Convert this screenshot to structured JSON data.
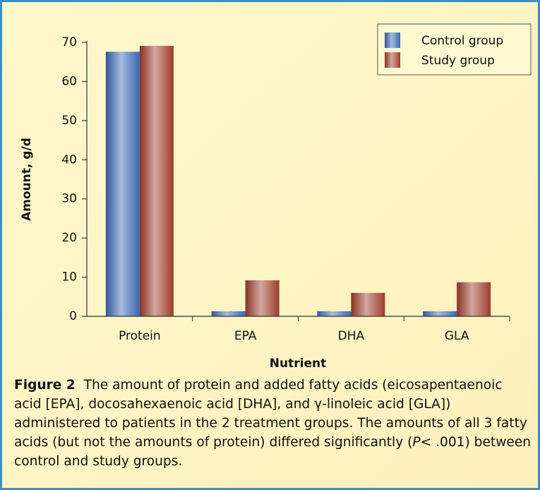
{
  "chart_data": {
    "type": "bar",
    "y_label": "Amount, g/d",
    "x_label": "Nutrient",
    "categories": [
      "Protein",
      "EPA",
      "DHA",
      "GLA"
    ],
    "series": [
      {
        "name": "Control group",
        "color": "#3b67b2",
        "values": [
          67.6,
          1.3,
          1.3,
          1.3
        ]
      },
      {
        "name": "Study group",
        "color": "#9c3b2b",
        "values": [
          69.1,
          9.2,
          6.0,
          8.7
        ]
      }
    ],
    "ylim": [
      0,
      70
    ],
    "yticks": [
      0,
      10,
      20,
      30,
      40,
      50,
      60,
      70
    ],
    "legend": "upper right"
  },
  "caption": {
    "label": "Figure 2",
    "text_before": "The amount of protein and added fatty acids (eicosapentaenoic acid [EPA], docosahexaenoic acid [DHA], and γ-linoleic acid [GLA]) administered to patients in the 2 treatment groups. The amounts of all 3 fatty acids (but not the amounts of protein) differed significantly (",
    "italic": "P",
    "text_after": "< .001) between control and study groups."
  }
}
